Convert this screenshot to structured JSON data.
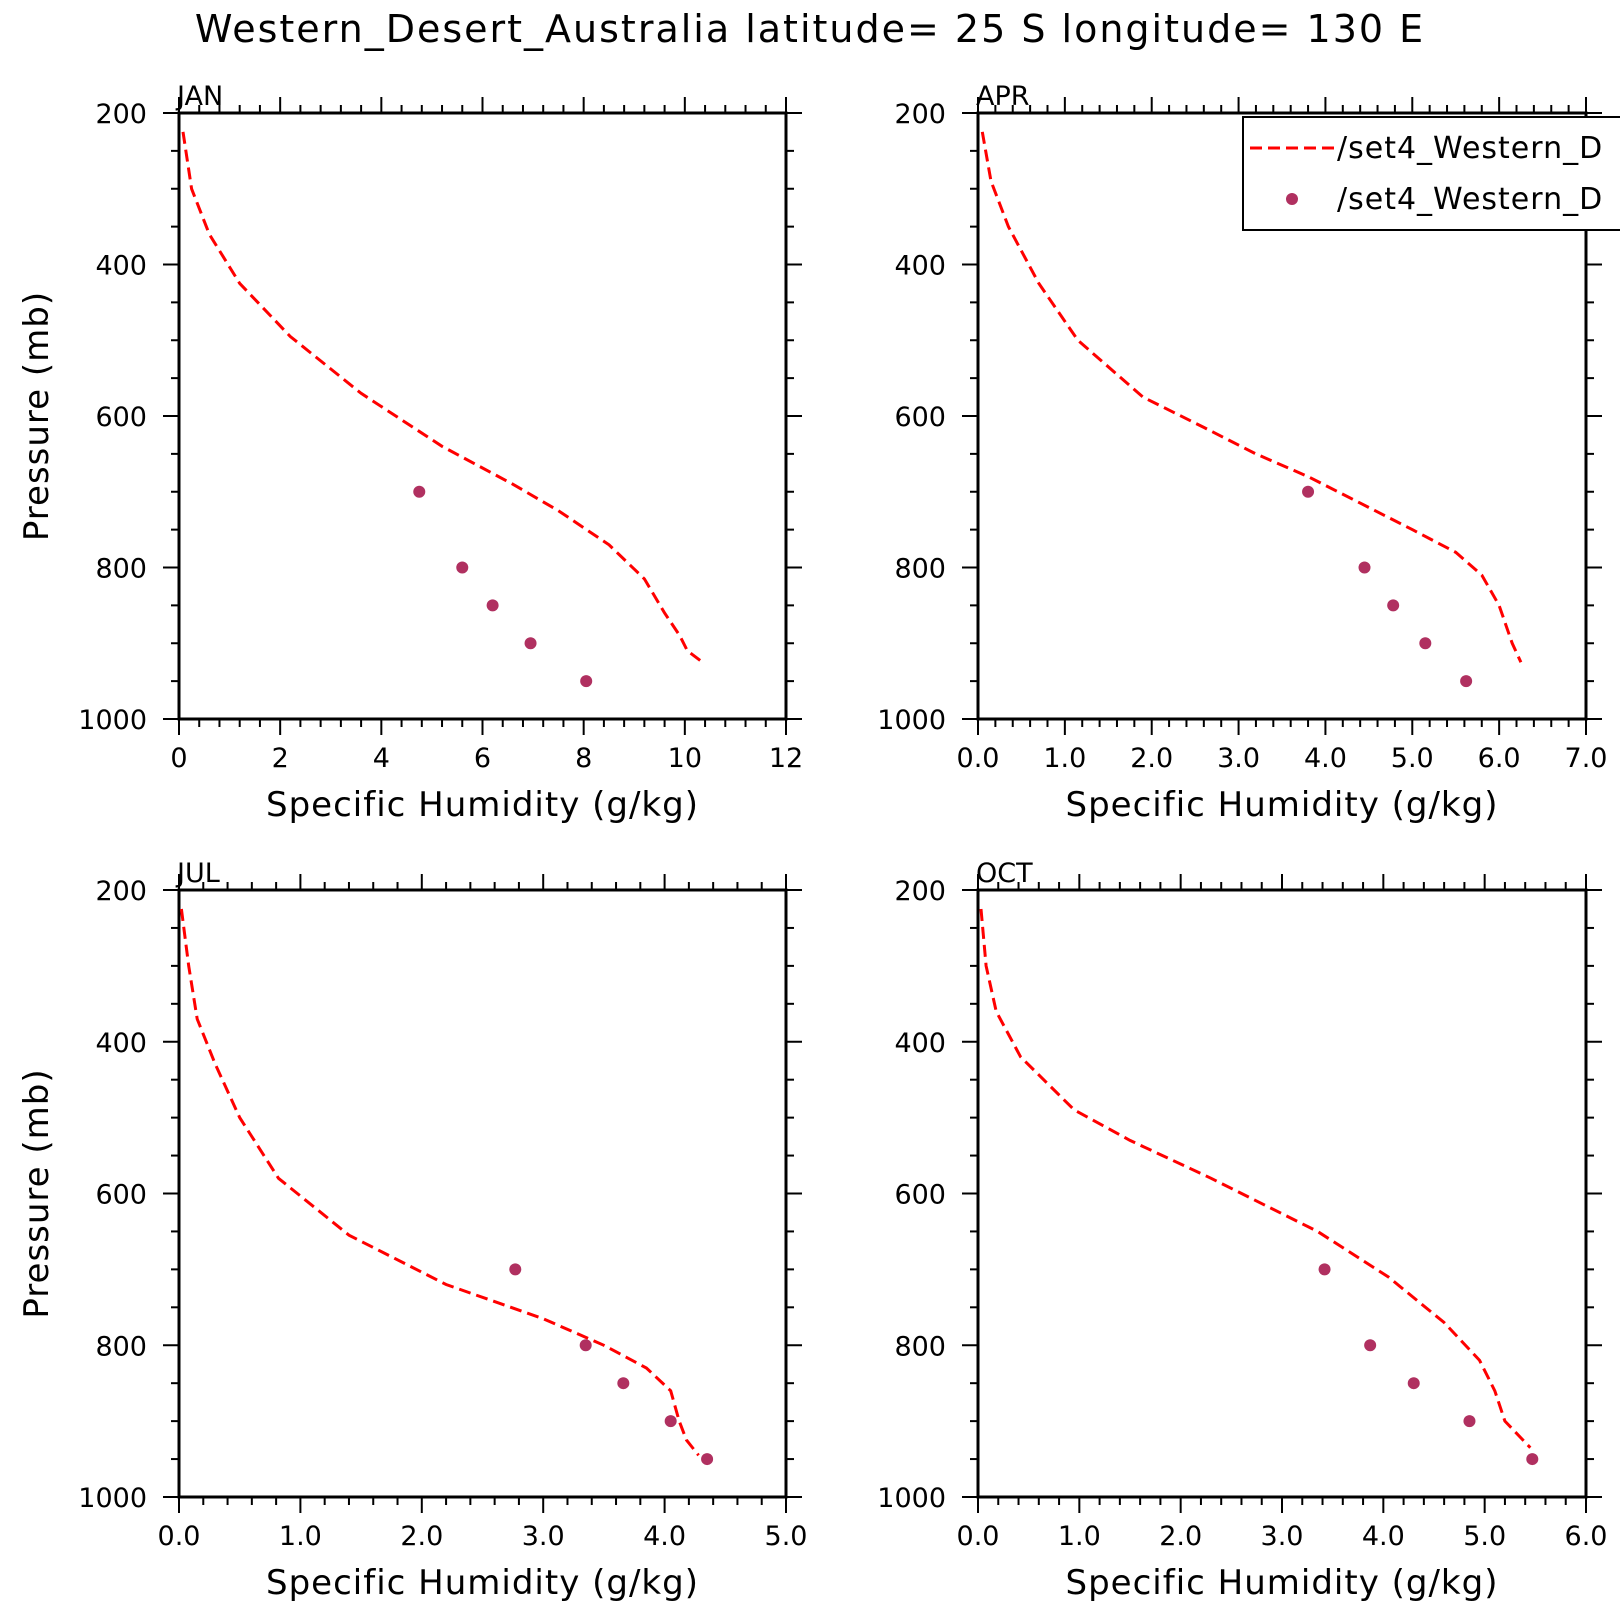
{
  "title": "Western_Desert_Australia  latitude= 25 S longitude= 130 E",
  "colors": {
    "model": "#ff0000",
    "obs": "#b03060",
    "axes": "#000000"
  },
  "legend": {
    "placement": "top-right of APR panel (clipped at right edge)",
    "entries": [
      {
        "label": "/set4_Western_D",
        "style": "dashed-line",
        "color": "#ff0000"
      },
      {
        "label": "/set4_Western_D",
        "style": "dot",
        "color": "#b03060"
      }
    ]
  },
  "chart_data": [
    {
      "type": "line",
      "title": "JAN",
      "xlabel": "Specific Humidity (g/kg)",
      "ylabel": "Pressure (mb)",
      "xlim": [
        0,
        12
      ],
      "ylim": [
        1000,
        200
      ],
      "y_reversed": true,
      "xticks": [
        0,
        2,
        4,
        6,
        8,
        10,
        12
      ],
      "xtick_labels": [
        "0",
        "2",
        "4",
        "6",
        "8",
        "10",
        "12"
      ],
      "yticks": [
        200,
        400,
        600,
        800,
        1000
      ],
      "ytick_labels": [
        "200",
        "400",
        "600",
        "800",
        "1000"
      ],
      "grid": false,
      "series": [
        {
          "name": "/set4_Western_D",
          "style": "dashed-line",
          "x": [
            0.08,
            0.25,
            0.6,
            1.2,
            2.2,
            3.6,
            5.2,
            6.6,
            7.5,
            8.5,
            9.2,
            9.6,
            9.9,
            10.05,
            10.35
          ],
          "y": [
            225,
            300,
            360,
            425,
            495,
            570,
            640,
            690,
            725,
            770,
            815,
            860,
            890,
            910,
            925
          ]
        },
        {
          "name": "/set4_Western_D",
          "style": "dots",
          "x": [
            4.75,
            5.6,
            6.2,
            6.95,
            8.05
          ],
          "y": [
            700,
            800,
            850,
            900,
            950
          ]
        }
      ]
    },
    {
      "type": "line",
      "title": "APR",
      "xlabel": "Specific Humidity (g/kg)",
      "ylabel": "",
      "xlim": [
        0,
        7
      ],
      "ylim": [
        1000,
        200
      ],
      "y_reversed": true,
      "xticks": [
        0,
        1,
        2,
        3,
        4,
        5,
        6,
        7
      ],
      "xtick_labels": [
        "0.0",
        "1.0",
        "2.0",
        "3.0",
        "4.0",
        "5.0",
        "6.0",
        "7.0"
      ],
      "yticks": [
        200,
        400,
        600,
        800,
        1000
      ],
      "ytick_labels": [
        "200",
        "400",
        "600",
        "800",
        "1000"
      ],
      "grid": false,
      "series": [
        {
          "name": "/set4_Western_D",
          "style": "dashed-line",
          "x": [
            0.05,
            0.15,
            0.35,
            0.7,
            1.15,
            1.9,
            2.6,
            3.2,
            3.8,
            4.4,
            5.0,
            5.5,
            5.8,
            6.0,
            6.15,
            6.25
          ],
          "y": [
            225,
            290,
            350,
            425,
            500,
            575,
            615,
            650,
            680,
            715,
            750,
            780,
            810,
            850,
            900,
            925
          ]
        },
        {
          "name": "/set4_Western_D",
          "style": "dots",
          "x": [
            3.8,
            4.45,
            4.78,
            5.15,
            5.62
          ],
          "y": [
            700,
            800,
            850,
            900,
            950
          ]
        }
      ]
    },
    {
      "type": "line",
      "title": "JUL",
      "xlabel": "Specific Humidity (g/kg)",
      "ylabel": "Pressure (mb)",
      "xlim": [
        0,
        5
      ],
      "ylim": [
        1000,
        200
      ],
      "y_reversed": true,
      "xticks": [
        0,
        1,
        2,
        3,
        4,
        5
      ],
      "xtick_labels": [
        "0.0",
        "1.0",
        "2.0",
        "3.0",
        "4.0",
        "5.0"
      ],
      "yticks": [
        200,
        400,
        600,
        800,
        1000
      ],
      "ytick_labels": [
        "200",
        "400",
        "600",
        "800",
        "1000"
      ],
      "grid": false,
      "series": [
        {
          "name": "/set4_Western_D",
          "style": "dashed-line",
          "x": [
            0.02,
            0.08,
            0.15,
            0.3,
            0.5,
            0.82,
            1.4,
            2.2,
            3.0,
            3.5,
            3.85,
            4.05,
            4.12,
            4.18,
            4.28
          ],
          "y": [
            225,
            300,
            370,
            430,
            500,
            580,
            655,
            720,
            765,
            800,
            830,
            860,
            900,
            925,
            945
          ]
        },
        {
          "name": "/set4_Western_D",
          "style": "dots",
          "x": [
            2.77,
            3.35,
            3.66,
            4.05,
            4.35
          ],
          "y": [
            700,
            800,
            850,
            900,
            950
          ]
        }
      ]
    },
    {
      "type": "line",
      "title": "OCT",
      "xlabel": "Specific Humidity (g/kg)",
      "ylabel": "",
      "xlim": [
        0,
        6
      ],
      "ylim": [
        1000,
        200
      ],
      "y_reversed": true,
      "xticks": [
        0,
        1,
        2,
        3,
        4,
        5,
        6
      ],
      "xtick_labels": [
        "0.0",
        "1.0",
        "2.0",
        "3.0",
        "4.0",
        "5.0",
        "6.0"
      ],
      "yticks": [
        200,
        400,
        600,
        800,
        1000
      ],
      "ytick_labels": [
        "200",
        "400",
        "600",
        "800",
        "1000"
      ],
      "grid": false,
      "series": [
        {
          "name": "/set4_Western_D",
          "style": "dashed-line",
          "x": [
            0.03,
            0.08,
            0.18,
            0.42,
            0.95,
            1.5,
            2.3,
            3.35,
            4.05,
            4.6,
            4.95,
            5.1,
            5.2,
            5.45
          ],
          "y": [
            225,
            300,
            360,
            420,
            490,
            530,
            580,
            650,
            710,
            770,
            820,
            860,
            900,
            935
          ]
        },
        {
          "name": "/set4_Western_D",
          "style": "dots",
          "x": [
            3.42,
            3.87,
            4.3,
            4.85,
            5.47
          ],
          "y": [
            700,
            800,
            850,
            900,
            950
          ]
        }
      ]
    }
  ]
}
